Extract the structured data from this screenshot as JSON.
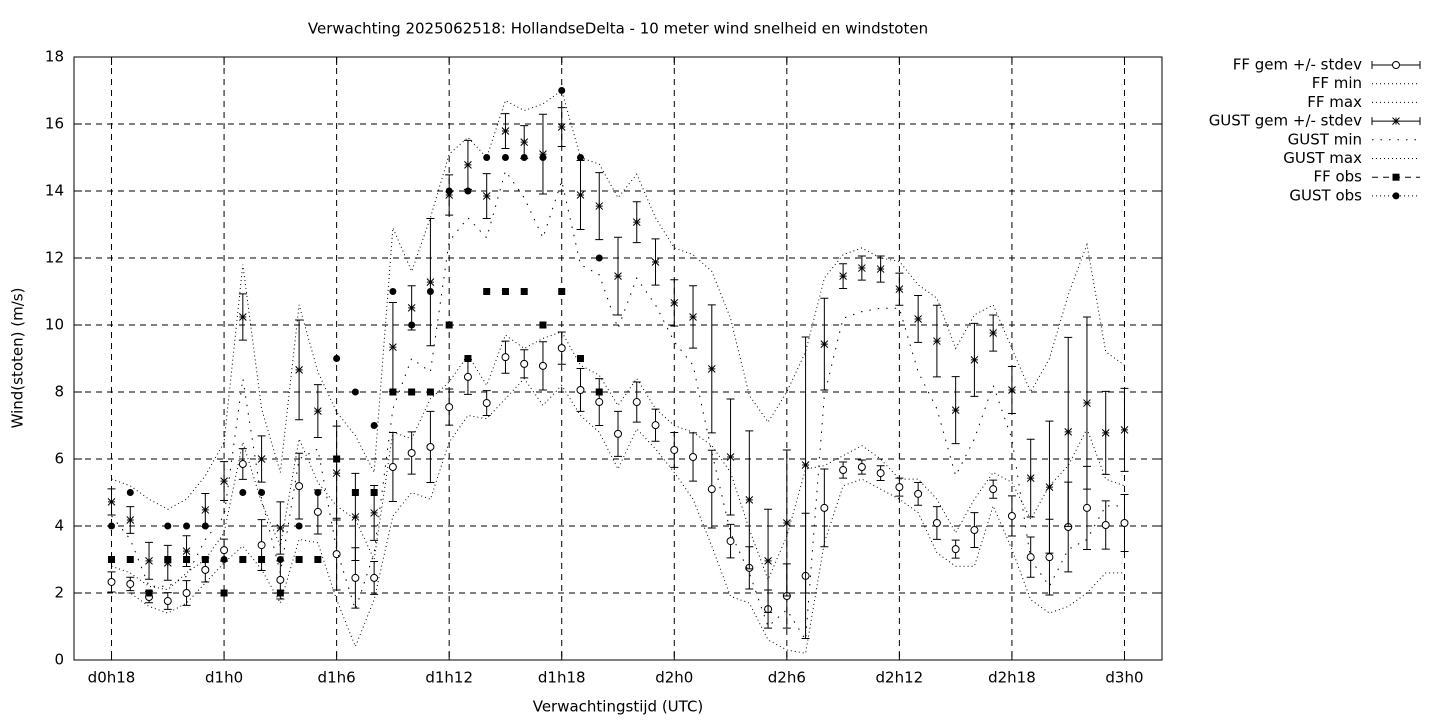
{
  "chart_data": {
    "type": "errorbar",
    "title": "Verwachting 2025062518: HollandseDelta - 10 meter wind snelheid en windstoten",
    "x_label": "Verwachtingstijd (UTC)",
    "y_label": "Wind(stoten) (m/s)",
    "xlim": [
      16,
      74
    ],
    "ylim": [
      0,
      18
    ],
    "xticks": [
      {
        "value": 18,
        "label": "d0h18"
      },
      {
        "value": 24,
        "label": "d1h0"
      },
      {
        "value": 30,
        "label": "d1h6"
      },
      {
        "value": 36,
        "label": "d1h12"
      },
      {
        "value": 42,
        "label": "d1h18"
      },
      {
        "value": 48,
        "label": "d2h0"
      },
      {
        "value": 54,
        "label": "d2h6"
      },
      {
        "value": 60,
        "label": "d2h12"
      },
      {
        "value": 66,
        "label": "d2h18"
      },
      {
        "value": 72,
        "label": "d3h0"
      }
    ],
    "yticks": [
      0,
      2,
      4,
      6,
      8,
      10,
      12,
      14,
      16,
      18
    ],
    "grid": true,
    "legend": "outside-top-right",
    "x": [
      18,
      19,
      20,
      21,
      22,
      23,
      24,
      25,
      26,
      27,
      28,
      29,
      30,
      31,
      32,
      33,
      34,
      35,
      36,
      37,
      38,
      39,
      40,
      41,
      42,
      43,
      44,
      45,
      46,
      47,
      48,
      49,
      50,
      51,
      52,
      53,
      54,
      55,
      56,
      57,
      58,
      59,
      60,
      61,
      62,
      63,
      64,
      65,
      66,
      67,
      68,
      69,
      70,
      71,
      72
    ],
    "series": [
      {
        "name": "FF gem +/- stdev",
        "color": "#000000",
        "marker": "open-circle",
        "line": "errorbar",
        "values": [
          2.33,
          2.27,
          1.88,
          1.76,
          2.0,
          2.69,
          3.28,
          5.85,
          3.43,
          2.39,
          5.19,
          4.42,
          3.16,
          2.45,
          2.45,
          5.76,
          6.18,
          6.36,
          7.55,
          8.45,
          7.67,
          9.04,
          8.84,
          8.78,
          9.31,
          8.06,
          7.7,
          6.75,
          7.7,
          7.01,
          6.27,
          6.06,
          5.1,
          3.55,
          2.75,
          1.52,
          1.91,
          2.51,
          4.54,
          5.67,
          5.76,
          5.58,
          5.16,
          4.96,
          4.09,
          3.31,
          3.88,
          5.1,
          4.3,
          3.07,
          3.07,
          3.97,
          4.54,
          4.03,
          4.09
        ],
        "errors": [
          0.3,
          0.2,
          0.17,
          0.25,
          0.37,
          0.36,
          0.33,
          0.46,
          0.76,
          0.57,
          0.98,
          0.66,
          1.07,
          0.9,
          0.49,
          1.03,
          0.63,
          1.06,
          0.54,
          0.52,
          0.37,
          0.48,
          0.42,
          0.72,
          0.48,
          0.64,
          0.7,
          0.67,
          0.6,
          0.48,
          0.52,
          0.72,
          1.16,
          0.5,
          0.63,
          0.57,
          0.96,
          1.87,
          1.16,
          0.24,
          0.21,
          0.22,
          0.27,
          0.34,
          0.49,
          0.27,
          0.52,
          0.27,
          0.6,
          0.6,
          1.13,
          1.34,
          1.24,
          0.72,
          0.85
        ]
      },
      {
        "name": "FF min",
        "color": "#000000",
        "marker": "none",
        "line": "dotted",
        "values": [
          2.0,
          2.0,
          1.6,
          1.4,
          1.7,
          2.3,
          2.9,
          3.4,
          2.7,
          1.7,
          3.6,
          3.5,
          1.8,
          0.4,
          1.8,
          4.3,
          5.0,
          4.8,
          6.5,
          7.3,
          7.2,
          7.8,
          8.4,
          7.6,
          8.2,
          7.3,
          6.8,
          5.7,
          6.9,
          6.3,
          5.6,
          4.8,
          3.4,
          1.9,
          1.7,
          0.6,
          0.3,
          0.2,
          3.5,
          5.2,
          5.4,
          5.1,
          4.8,
          4.4,
          3.2,
          2.8,
          2.8,
          4.6,
          3.3,
          1.8,
          1.4,
          1.6,
          2.0,
          2.6,
          2.6
        ]
      },
      {
        "name": "FF max",
        "color": "#000000",
        "marker": "none",
        "line": "dotted",
        "values": [
          2.8,
          2.6,
          2.2,
          2.1,
          2.6,
          3.0,
          3.8,
          6.5,
          4.7,
          3.4,
          6.6,
          5.3,
          4.6,
          4.2,
          3.0,
          6.8,
          6.6,
          7.8,
          8.3,
          9.1,
          8.2,
          9.7,
          9.3,
          9.6,
          9.8,
          8.8,
          8.5,
          7.6,
          8.4,
          7.5,
          7.0,
          6.8,
          6.4,
          5.6,
          3.9,
          2.4,
          3.7,
          5.7,
          5.8,
          6.1,
          6.4,
          6.0,
          5.4,
          5.4,
          4.8,
          3.8,
          4.8,
          5.6,
          5.3,
          4.2,
          5.2,
          5.8,
          6.9,
          5.4,
          5.2
        ]
      },
      {
        "name": "GUST gem +/- stdev",
        "color": "#000000",
        "marker": "star",
        "line": "errorbar",
        "values": [
          4.72,
          4.18,
          2.96,
          2.9,
          3.25,
          4.48,
          5.34,
          10.24,
          6.0,
          3.94,
          8.66,
          7.43,
          5.58,
          4.27,
          4.39,
          9.34,
          10.51,
          11.28,
          13.88,
          14.78,
          13.85,
          15.79,
          15.46,
          15.1,
          15.91,
          13.88,
          13.55,
          11.46,
          13.07,
          11.88,
          10.66,
          10.24,
          8.69,
          6.06,
          4.78,
          2.96,
          4.09,
          5.82,
          9.43,
          11.46,
          11.7,
          11.67,
          11.07,
          10.18,
          9.52,
          7.46,
          8.96,
          9.76,
          8.06,
          5.43,
          5.16,
          6.81,
          7.67,
          6.78,
          6.87
        ],
        "errors": [
          0.39,
          0.4,
          0.55,
          0.52,
          0.46,
          0.49,
          0.58,
          0.69,
          0.69,
          0.78,
          1.49,
          0.79,
          1.4,
          1.3,
          0.82,
          1.33,
          0.66,
          1.9,
          0.6,
          0.73,
          0.67,
          0.52,
          0.49,
          1.19,
          0.58,
          1.03,
          1.0,
          1.16,
          0.61,
          0.69,
          0.69,
          0.93,
          1.91,
          1.73,
          2.06,
          1.54,
          2.18,
          3.82,
          1.37,
          0.37,
          0.36,
          0.39,
          0.48,
          0.7,
          1.07,
          1.0,
          1.09,
          0.54,
          0.7,
          1.16,
          1.97,
          2.82,
          2.57,
          1.24,
          1.24
        ]
      },
      {
        "name": "GUST min",
        "color": "#000000",
        "marker": "none",
        "line": "sparse-dotted",
        "values": [
          4.3,
          3.6,
          2.2,
          2.2,
          2.5,
          3.6,
          4.3,
          8.4,
          4.8,
          2.6,
          6.0,
          6.3,
          3.3,
          1.5,
          3.2,
          7.5,
          9.0,
          8.6,
          12.5,
          13.2,
          12.6,
          14.6,
          13.8,
          12.6,
          14.3,
          11.8,
          11.5,
          9.9,
          11.4,
          10.6,
          9.5,
          8.8,
          6.2,
          3.8,
          2.6,
          1.0,
          1.5,
          0.6,
          7.9,
          10.2,
          10.4,
          10.5,
          10.5,
          8.6,
          7.5,
          5.5,
          6.6,
          8.2,
          6.6,
          3.0,
          2.2,
          3.3,
          3.6,
          4.6,
          4.6
        ]
      },
      {
        "name": "GUST max",
        "color": "#000000",
        "marker": "none",
        "line": "dotted",
        "values": [
          5.4,
          5.2,
          4.8,
          4.5,
          4.8,
          5.5,
          6.5,
          11.8,
          7.5,
          5.6,
          10.6,
          8.6,
          7.4,
          6.7,
          5.6,
          12.9,
          11.6,
          13.2,
          15.1,
          15.6,
          15.0,
          16.7,
          16.4,
          16.6,
          17.0,
          15.0,
          14.8,
          13.8,
          14.5,
          13.2,
          12.3,
          12.1,
          11.6,
          10.2,
          7.9,
          7.1,
          8.0,
          9.2,
          11.4,
          12.1,
          12.3,
          12.0,
          11.9,
          11.2,
          10.8,
          9.3,
          10.3,
          10.6,
          9.3,
          8.0,
          9.0,
          10.9,
          12.4,
          9.2,
          8.8
        ]
      },
      {
        "name": "FF obs",
        "color": "#000000",
        "marker": "square",
        "line": "none",
        "values": [
          3,
          3,
          2,
          3,
          3,
          3,
          2,
          3,
          3,
          2,
          3,
          3,
          6,
          5,
          5,
          8,
          8,
          8,
          10,
          9,
          11,
          11,
          11,
          10,
          11,
          9,
          8,
          null,
          null,
          null,
          null,
          null,
          null,
          null,
          null,
          null,
          null,
          null,
          null,
          null,
          null,
          null,
          null,
          null,
          null,
          null,
          null,
          null,
          null,
          null,
          null,
          null,
          null,
          null,
          null
        ]
      },
      {
        "name": "GUST obs",
        "color": "#000000",
        "marker": "dot",
        "line": "none",
        "values": [
          4,
          5,
          null,
          4,
          4,
          4,
          3,
          5,
          5,
          3,
          4,
          5,
          9,
          8,
          7,
          11,
          10,
          11,
          14,
          14,
          15,
          15,
          15,
          15,
          17,
          15,
          12,
          null,
          null,
          null,
          null,
          null,
          null,
          null,
          null,
          null,
          null,
          null,
          null,
          null,
          null,
          null,
          null,
          null,
          null,
          null,
          null,
          null,
          null,
          null,
          null,
          null,
          null,
          null,
          null
        ]
      }
    ]
  }
}
